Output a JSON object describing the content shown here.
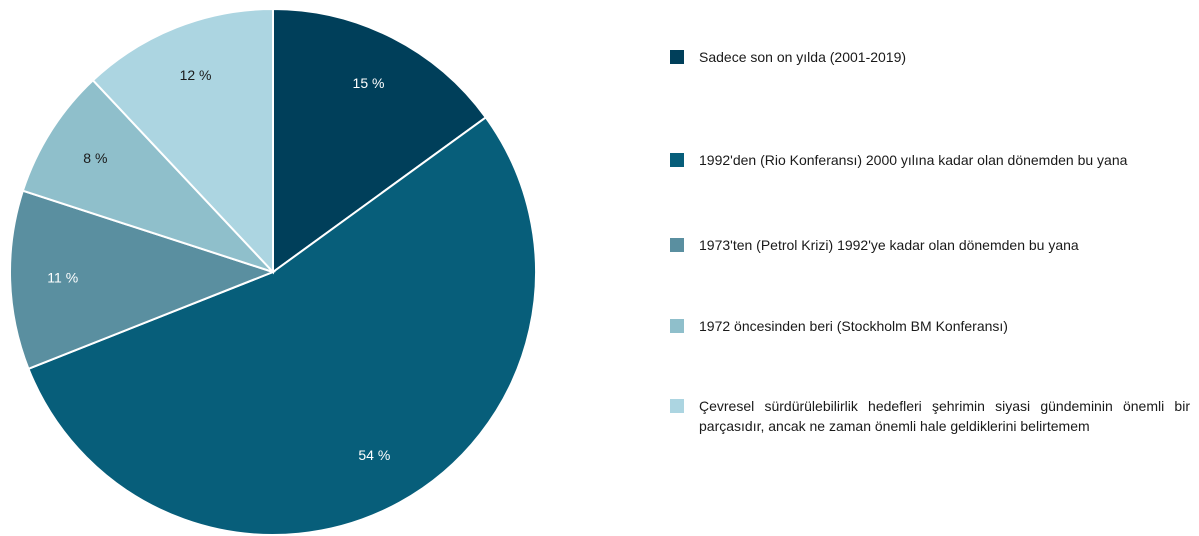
{
  "chart_data": {
    "type": "pie",
    "categories": [
      "Sadece son on yılda (2001-2019)",
      "1992'den (Rio Konferansı) 2000 yılına kadar olan dönemden bu yana",
      "1973'ten (Petrol Krizi) 1992'ye kadar olan dönemden bu yana",
      "1972 öncesinden beri (Stockholm BM Konferansı)",
      "Çevresel sürdürülebilirlik hedefleri şehrimin siyasi gündeminin önemli bir parçasıdır, ancak ne zaman önemli hale geldiklerini belirtemem"
    ],
    "values": [
      15,
      54,
      11,
      8,
      12
    ],
    "value_labels": [
      "15 %",
      "54 %",
      "11 %",
      "8 %",
      "12 %"
    ],
    "colors": [
      "#003f5a",
      "#075e7a",
      "#5a8fa0",
      "#8fbfcb",
      "#acd5e1"
    ],
    "label_colors": [
      "#ffffff",
      "#ffffff",
      "#ffffff",
      "#1a1a1a",
      "#1a1a1a"
    ],
    "legend": "right"
  }
}
